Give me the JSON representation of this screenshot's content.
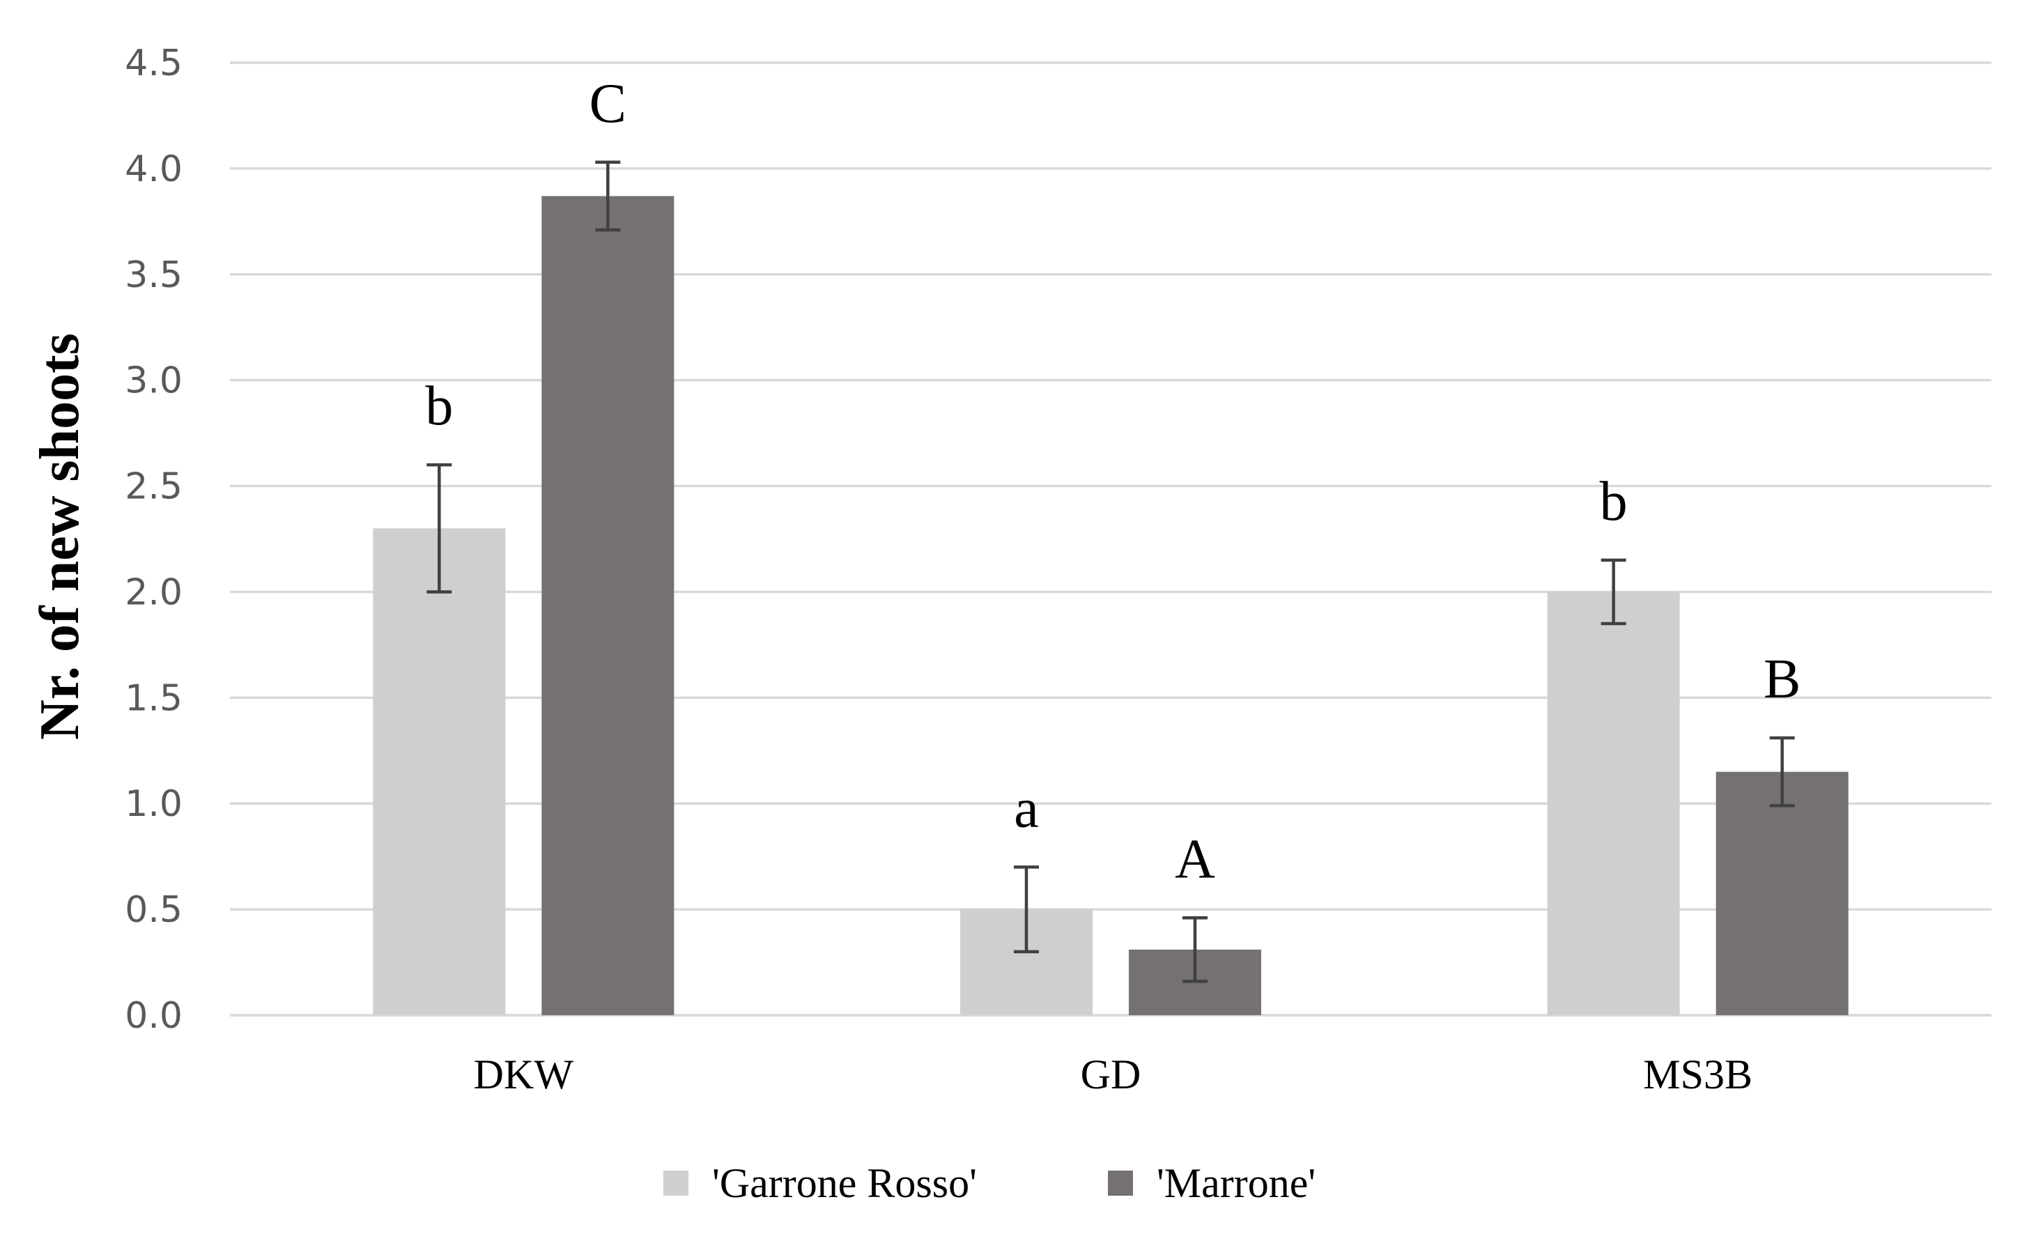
{
  "chart_data": {
    "type": "bar",
    "title": "",
    "xlabel": "",
    "ylabel": "Nr. of new shoots",
    "ylim": [
      0,
      4.5
    ],
    "ytick_values": [
      0,
      0.5,
      1,
      1.5,
      2,
      2.5,
      3,
      3.5,
      4,
      4.5
    ],
    "ytick_labels": [
      "0.0",
      "0.5",
      "1.0",
      "1.5",
      "2.0",
      "2.5",
      "3.0",
      "3.5",
      "4.0",
      "4.5"
    ],
    "grid": true,
    "legend_position": "bottom",
    "categories": [
      "DKW",
      "GD",
      "MS3B"
    ],
    "series": [
      {
        "name": "'Garrone Rosso'",
        "color": "#d0cece",
        "values": [
          2.3,
          0.5,
          2.0
        ],
        "errors": [
          0.3,
          0.2,
          0.15
        ],
        "significance": [
          "b",
          "a",
          "b"
        ]
      },
      {
        "name": "'Marrone'",
        "color": "#767171",
        "values": [
          3.87,
          0.31,
          1.15
        ],
        "errors": [
          0.16,
          0.15,
          0.16
        ],
        "significance": [
          "C",
          "A",
          "B"
        ]
      }
    ]
  }
}
